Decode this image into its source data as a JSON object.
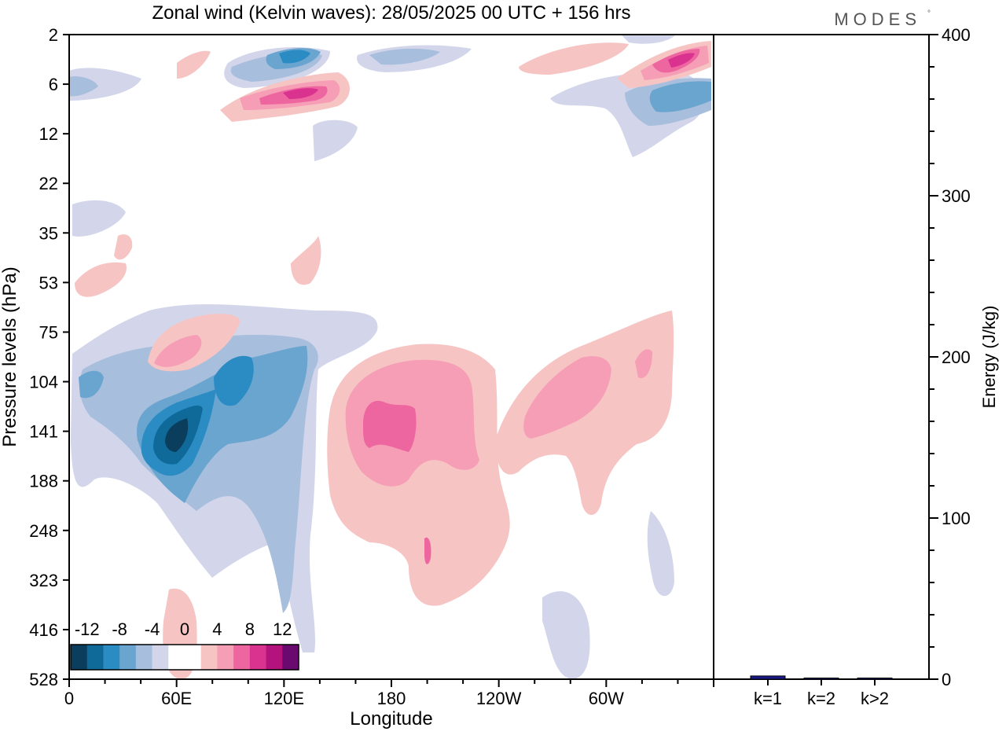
{
  "chart_data": [
    {
      "type": "heatmap",
      "title": "Zonal wind (Kelvin waves):  28/05/2025  00 UTC  + 156 hrs",
      "xlabel": "Longitude",
      "ylabel": "Pressure levels (hPa)",
      "x_ticks": [
        {
          "deg": 0,
          "label": "0"
        },
        {
          "deg": 60,
          "label": "60E"
        },
        {
          "deg": 120,
          "label": "120E"
        },
        {
          "deg": 180,
          "label": "180"
        },
        {
          "deg": 240,
          "label": "120W"
        },
        {
          "deg": 300,
          "label": "60W"
        }
      ],
      "xlim": [
        0,
        360
      ],
      "y_levels": [
        "2",
        "6",
        "12",
        "22",
        "35",
        "53",
        "75",
        "104",
        "141",
        "188",
        "248",
        "323",
        "416",
        "528"
      ],
      "legend": {
        "labels": [
          "-12",
          "-8",
          "-4",
          "0",
          "4",
          "8",
          "12"
        ],
        "colors": [
          "#0b3d5c",
          "#0f6a9a",
          "#2b8cc4",
          "#6aa5d0",
          "#a8bedd",
          "#d3d6ea",
          "#ffffff",
          "#ffffff",
          "#f7c4c4",
          "#f59eb5",
          "#ee66a0",
          "#d9328f",
          "#b4137e",
          "#6a0a6e"
        ]
      },
      "features": [
        {
          "lon": 50,
          "level": 141,
          "value": -14
        },
        {
          "lon": 85,
          "level": 120,
          "value": -10
        },
        {
          "lon": 175,
          "level": 141,
          "value": 8
        },
        {
          "lon": 275,
          "level": 120,
          "value": 6
        },
        {
          "lon": 130,
          "level": 6,
          "value": 9
        },
        {
          "lon": 330,
          "level": 4,
          "value": 8
        },
        {
          "lon": 340,
          "level": 8,
          "value": -8
        }
      ]
    },
    {
      "type": "bar",
      "ylabel": "Energy (J/kg)",
      "ylim": [
        0,
        400
      ],
      "y_ticks": [
        "0",
        "100",
        "200",
        "300",
        "400"
      ],
      "categories": [
        "k=1",
        "k=2",
        "k>2"
      ],
      "values": [
        2,
        0.5,
        0.5
      ],
      "bar_color": "#1a1a8c"
    }
  ],
  "brand": "MODES",
  "brand_mark": "°"
}
